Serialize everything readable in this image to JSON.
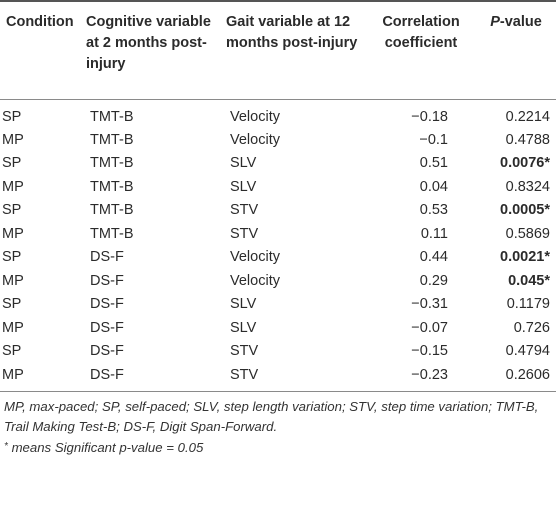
{
  "table": {
    "headers": {
      "condition": "Condition",
      "cognitive": "Cognitive variable at 2 months post-injury",
      "gait": "Gait variable at 12 months post-injury",
      "correlation": "Correlation coefficient",
      "pvalue_p": "P",
      "pvalue_rest": "-value"
    },
    "rows": [
      {
        "condition": "SP",
        "cognitive": "TMT-B",
        "gait": "Velocity",
        "correlation": "−0.18",
        "pvalue": "0.2214",
        "significant": false
      },
      {
        "condition": "MP",
        "cognitive": "TMT-B",
        "gait": "Velocity",
        "correlation": "−0.1",
        "pvalue": "0.4788",
        "significant": false
      },
      {
        "condition": "SP",
        "cognitive": "TMT-B",
        "gait": "SLV",
        "correlation": "0.51",
        "pvalue": "0.0076*",
        "significant": true
      },
      {
        "condition": "MP",
        "cognitive": "TMT-B",
        "gait": "SLV",
        "correlation": "0.04",
        "pvalue": "0.8324",
        "significant": false
      },
      {
        "condition": "SP",
        "cognitive": "TMT-B",
        "gait": "STV",
        "correlation": "0.53",
        "pvalue": "0.0005*",
        "significant": true
      },
      {
        "condition": "MP",
        "cognitive": "TMT-B",
        "gait": "STV",
        "correlation": "0.11",
        "pvalue": "0.5869",
        "significant": false
      },
      {
        "condition": "SP",
        "cognitive": "DS-F",
        "gait": "Velocity",
        "correlation": "0.44",
        "pvalue": "0.0021*",
        "significant": true
      },
      {
        "condition": "MP",
        "cognitive": "DS-F",
        "gait": "Velocity",
        "correlation": "0.29",
        "pvalue": "0.045*",
        "significant": true
      },
      {
        "condition": "SP",
        "cognitive": "DS-F",
        "gait": "SLV",
        "correlation": "−0.31",
        "pvalue": "0.1179",
        "significant": false
      },
      {
        "condition": "MP",
        "cognitive": "DS-F",
        "gait": "SLV",
        "correlation": "−0.07",
        "pvalue": "0.726",
        "significant": false
      },
      {
        "condition": "SP",
        "cognitive": "DS-F",
        "gait": "STV",
        "correlation": "−0.15",
        "pvalue": "0.4794",
        "significant": false
      },
      {
        "condition": "MP",
        "cognitive": "DS-F",
        "gait": "STV",
        "correlation": "−0.23",
        "pvalue": "0.2606",
        "significant": false
      }
    ]
  },
  "footnote": {
    "abbreviations": "MP, max-paced; SP, self-paced; SLV, step length variation; STV, step time variation; TMT-B, Trail Making Test-B; DS-F, Digit Span-Forward.",
    "asterisk": "*",
    "significance": " means Significant p-value = 0.05"
  }
}
